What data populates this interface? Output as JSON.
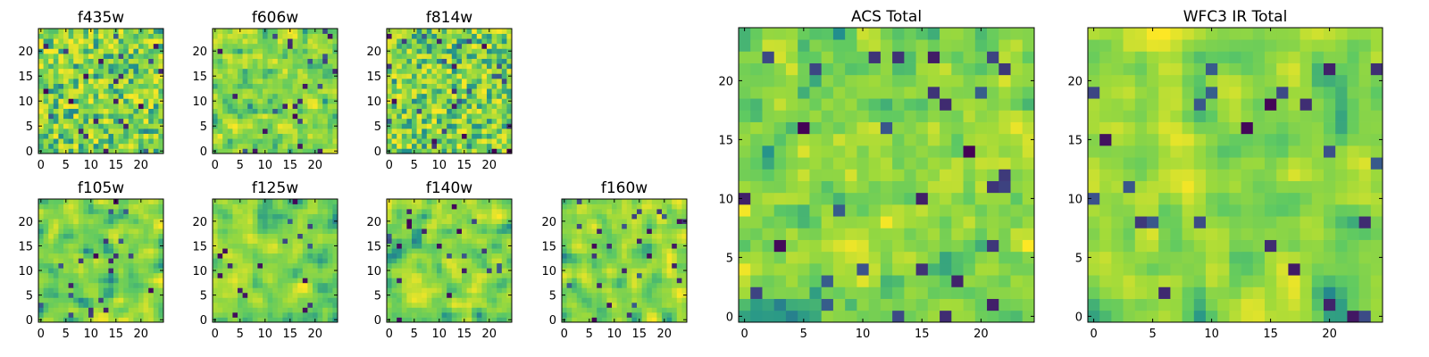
{
  "chart_data": [
    {
      "type": "heatmap",
      "title": "f435w",
      "grid": "25x25",
      "xlim": [
        0,
        24
      ],
      "ylim": [
        0,
        24
      ],
      "xticks": [
        "0",
        "5",
        "10",
        "15",
        "20"
      ],
      "yticks": [
        "0",
        "5",
        "10",
        "15",
        "20"
      ],
      "seed": 11,
      "smooth": 0
    },
    {
      "type": "heatmap",
      "title": "f606w",
      "grid": "25x25",
      "xlim": [
        0,
        24
      ],
      "ylim": [
        0,
        24
      ],
      "xticks": [
        "0",
        "5",
        "10",
        "15",
        "20"
      ],
      "yticks": [
        "0",
        "5",
        "10",
        "15",
        "20"
      ],
      "seed": 23,
      "smooth": 1
    },
    {
      "type": "heatmap",
      "title": "f814w",
      "grid": "25x25",
      "xlim": [
        0,
        24
      ],
      "ylim": [
        0,
        24
      ],
      "xticks": [
        "0",
        "5",
        "10",
        "15",
        "20"
      ],
      "yticks": [
        "0",
        "5",
        "10",
        "15",
        "20"
      ],
      "seed": 37,
      "smooth": 0
    },
    {
      "type": "heatmap",
      "title": "f105w",
      "grid": "25x25",
      "xlim": [
        0,
        24
      ],
      "ylim": [
        0,
        24
      ],
      "xticks": [
        "0",
        "5",
        "10",
        "15",
        "20"
      ],
      "yticks": [
        "0",
        "5",
        "10",
        "15",
        "20"
      ],
      "seed": 41,
      "smooth": 2
    },
    {
      "type": "heatmap",
      "title": "f125w",
      "grid": "25x25",
      "xlim": [
        0,
        24
      ],
      "ylim": [
        0,
        24
      ],
      "xticks": [
        "0",
        "5",
        "10",
        "15",
        "20"
      ],
      "yticks": [
        "0",
        "5",
        "10",
        "15",
        "20"
      ],
      "seed": 53,
      "smooth": 2
    },
    {
      "type": "heatmap",
      "title": "f140w",
      "grid": "25x25",
      "xlim": [
        0,
        24
      ],
      "ylim": [
        0,
        24
      ],
      "xticks": [
        "0",
        "5",
        "10",
        "15",
        "20"
      ],
      "yticks": [
        "0",
        "5",
        "10",
        "15",
        "20"
      ],
      "seed": 67,
      "smooth": 2
    },
    {
      "type": "heatmap",
      "title": "f160w",
      "grid": "25x25",
      "xlim": [
        0,
        24
      ],
      "ylim": [
        0,
        24
      ],
      "xticks": [
        "0",
        "5",
        "10",
        "15",
        "20"
      ],
      "yticks": [
        "0",
        "5",
        "10",
        "15",
        "20"
      ],
      "seed": 79,
      "smooth": 2
    },
    {
      "type": "heatmap",
      "title": "ACS Total",
      "grid": "25x25",
      "xlim": [
        0,
        24
      ],
      "ylim": [
        0,
        24
      ],
      "xticks": [
        "0",
        "5",
        "10",
        "15",
        "20"
      ],
      "yticks": [
        "0",
        "5",
        "10",
        "15",
        "20"
      ],
      "seed": 97,
      "smooth": 1
    },
    {
      "type": "heatmap",
      "title": "WFC3 IR Total",
      "grid": "25x25",
      "xlim": [
        0,
        24
      ],
      "ylim": [
        0,
        24
      ],
      "xticks": [
        "0",
        "5",
        "10",
        "15",
        "20"
      ],
      "yticks": [
        "0",
        "5",
        "10",
        "15",
        "20"
      ],
      "seed": 131,
      "smooth": 2
    }
  ],
  "colormap": [
    "#440154",
    "#3b528b",
    "#21908d",
    "#5dc963",
    "#9fda3a",
    "#fde725"
  ]
}
